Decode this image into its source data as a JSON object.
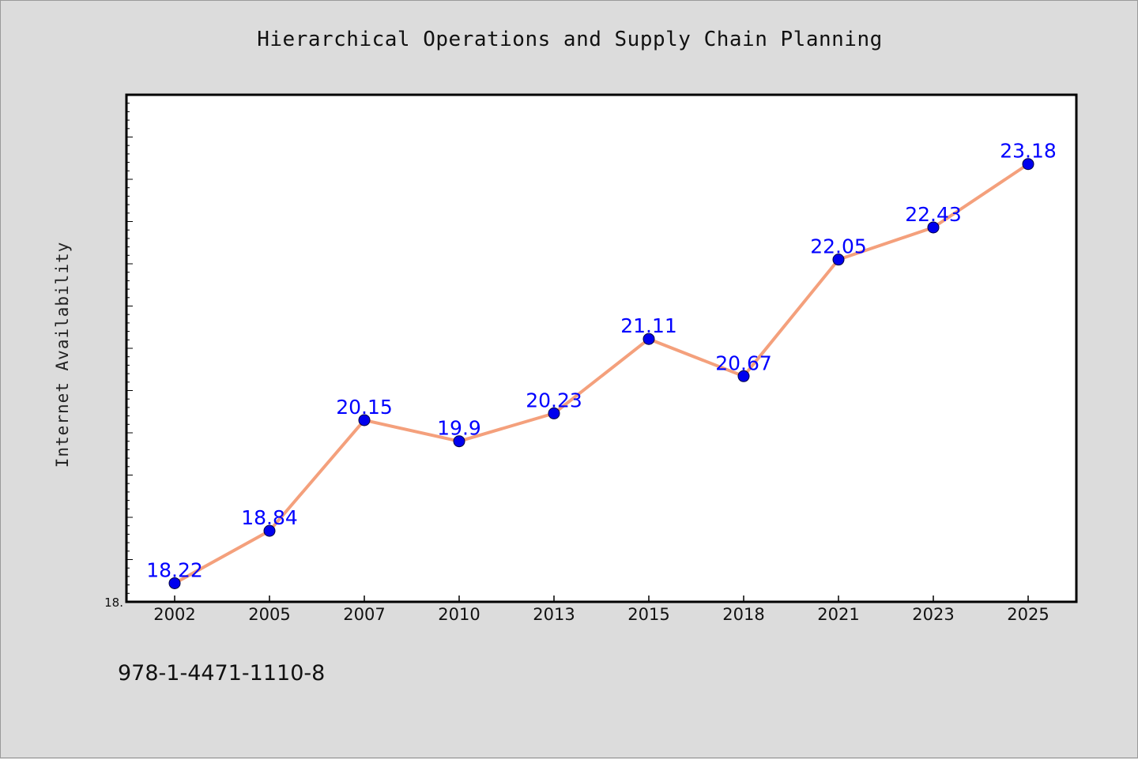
{
  "chart_data": {
    "type": "line",
    "title": "Hierarchical Operations and Supply Chain Planning",
    "xlabel": "",
    "ylabel": "Internet Availability",
    "y_tick_label": "18.",
    "ylim": [
      18.0,
      24.0
    ],
    "categories": [
      "2002",
      "2005",
      "2007",
      "2010",
      "2013",
      "2015",
      "2018",
      "2021",
      "2023",
      "2025"
    ],
    "series": [
      {
        "values": [
          18.22,
          18.84,
          20.15,
          19.9,
          20.23,
          21.11,
          20.67,
          22.05,
          22.43,
          23.18
        ],
        "labels": [
          "18.22",
          "18.84",
          "20.15",
          "19.9",
          "20.23",
          "21.11",
          "20.67",
          "22.05",
          "22.43",
          "23.18"
        ],
        "line_color": "#f4a07c",
        "marker_color": "#0000ee",
        "label_color": "#0000ff"
      }
    ],
    "grid": false,
    "legend": "none"
  },
  "footer": {
    "isbn": "978-1-4471-1110-8"
  },
  "colors": {
    "background": "#dcdcdc",
    "plot_background": "#ffffff",
    "axis": "#000000"
  }
}
